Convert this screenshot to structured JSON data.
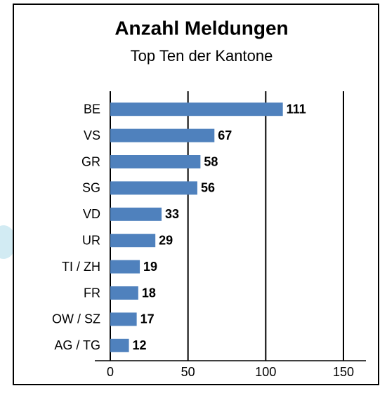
{
  "chart_data": {
    "type": "bar",
    "orientation": "horizontal",
    "title": "Anzahl Meldungen",
    "subtitle": "Top Ten der Kantone",
    "categories": [
      "BE",
      "VS",
      "GR",
      "SG",
      "VD",
      "UR",
      "TI / ZH",
      "FR",
      "OW / SZ",
      "AG / TG"
    ],
    "values": [
      111,
      67,
      58,
      56,
      33,
      29,
      19,
      18,
      17,
      12
    ],
    "color": "#4f81bd",
    "xlim": [
      0,
      150
    ],
    "xticks": [
      0,
      50,
      100,
      150
    ],
    "grid": true
  }
}
